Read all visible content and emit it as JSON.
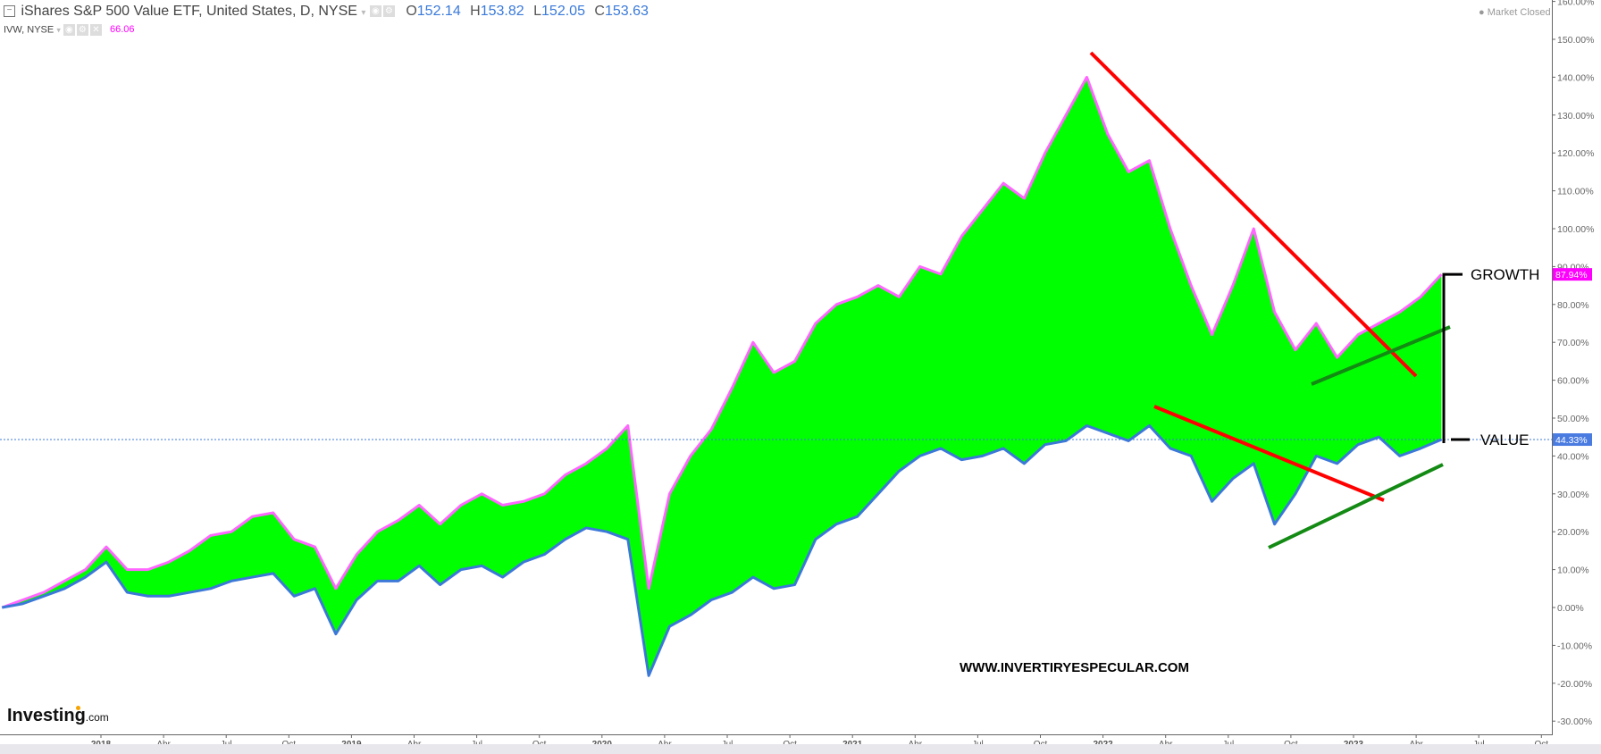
{
  "header": {
    "title": "iShares S&P 500 Value ETF, United States, D, NYSE",
    "open_label": "O",
    "open": "152.14",
    "high_label": "H",
    "high": "153.82",
    "low_label": "L",
    "low": "152.05",
    "close_label": "C",
    "close": "153.63",
    "compare_symbol": "IVW, NYSE",
    "compare_value": "66.06",
    "market_status": "Market Closed"
  },
  "logo": {
    "name": "Investing",
    "suffix": ".com"
  },
  "watermark": "WWW.INVERTIRYESPECULAR.COM",
  "colors": {
    "growth": "#ff66ff",
    "value": "#3c78d8",
    "fill": "#00ff00",
    "trend_down": "#ff0000",
    "trend_up": "#138a13",
    "annotation": "#000000"
  },
  "chart_data": {
    "type": "line",
    "ylim": [
      -30,
      160
    ],
    "y_ticks": [
      "160.00%",
      "150.00%",
      "140.00%",
      "130.00%",
      "120.00%",
      "110.00%",
      "100.00%",
      "90.00%",
      "80.00%",
      "70.00%",
      "60.00%",
      "50.00%",
      "40.00%",
      "30.00%",
      "20.00%",
      "10.00%",
      "0.00%",
      "-10.00%",
      "-20.00%",
      "-30.00%"
    ],
    "x_ticks": [
      "2018",
      "Abr",
      "Jul",
      "Oct",
      "2019",
      "Abr",
      "Jul",
      "Oct",
      "2020",
      "Abr",
      "Jul",
      "Oct",
      "2021",
      "Abr",
      "Jul",
      "Oct",
      "2022",
      "Abr",
      "Jul",
      "Oct",
      "2023",
      "Abr",
      "Jul",
      "Oct"
    ],
    "x": [
      "2017-08",
      "2017-09",
      "2017-10",
      "2017-11",
      "2017-12",
      "2018-01",
      "2018-02",
      "2018-03",
      "2018-04",
      "2018-05",
      "2018-06",
      "2018-07",
      "2018-08",
      "2018-09",
      "2018-10",
      "2018-11",
      "2018-12",
      "2019-01",
      "2019-02",
      "2019-03",
      "2019-04",
      "2019-05",
      "2019-06",
      "2019-07",
      "2019-08",
      "2019-09",
      "2019-10",
      "2019-11",
      "2019-12",
      "2020-01",
      "2020-02",
      "2020-03",
      "2020-04",
      "2020-05",
      "2020-06",
      "2020-07",
      "2020-08",
      "2020-09",
      "2020-10",
      "2020-11",
      "2020-12",
      "2021-01",
      "2021-02",
      "2021-03",
      "2021-04",
      "2021-05",
      "2021-06",
      "2021-07",
      "2021-08",
      "2021-09",
      "2021-10",
      "2021-11",
      "2021-12",
      "2022-01",
      "2022-02",
      "2022-03",
      "2022-04",
      "2022-05",
      "2022-06",
      "2022-07",
      "2022-08",
      "2022-09",
      "2022-10",
      "2022-11",
      "2022-12",
      "2023-01",
      "2023-02",
      "2023-03",
      "2023-04",
      "2023-05"
    ],
    "series": [
      {
        "name": "IVW, NYSE",
        "last_label": "87.94%",
        "values": [
          0,
          2,
          4,
          7,
          10,
          16,
          10,
          10,
          12,
          15,
          19,
          20,
          24,
          25,
          18,
          16,
          5,
          14,
          20,
          23,
          27,
          22,
          27,
          30,
          27,
          28,
          30,
          35,
          38,
          42,
          48,
          5,
          30,
          40,
          47,
          58,
          70,
          62,
          65,
          75,
          80,
          82,
          85,
          82,
          90,
          88,
          98,
          105,
          112,
          108,
          120,
          130,
          140,
          125,
          115,
          118,
          100,
          85,
          72,
          85,
          100,
          78,
          68,
          75,
          66,
          72,
          75,
          78,
          82,
          87.94
        ]
      },
      {
        "name": "iShares S&P 500 Value ETF",
        "last_label": "44.33%",
        "values": [
          0,
          1,
          3,
          5,
          8,
          12,
          4,
          3,
          3,
          4,
          5,
          7,
          8,
          9,
          3,
          5,
          -7,
          2,
          7,
          7,
          11,
          6,
          10,
          11,
          8,
          12,
          14,
          18,
          21,
          20,
          18,
          -18,
          -5,
          -2,
          2,
          4,
          8,
          5,
          6,
          18,
          22,
          24,
          30,
          36,
          40,
          42,
          39,
          40,
          42,
          38,
          43,
          44,
          48,
          46,
          44,
          48,
          42,
          40,
          28,
          34,
          38,
          22,
          30,
          40,
          38,
          43,
          45,
          40,
          42,
          44.33
        ]
      }
    ],
    "annotations": {
      "growth_label": "GROWTH",
      "value_label": "VALUE"
    },
    "grid": false
  }
}
